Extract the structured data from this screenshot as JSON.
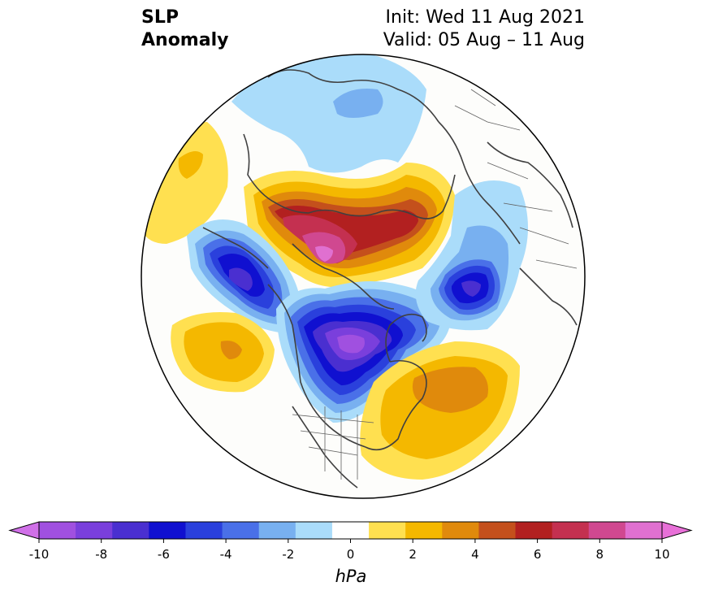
{
  "title": {
    "left_line1": "SLP",
    "left_line2": "Anomaly",
    "right_line1": "Init: Wed 11 Aug 2021",
    "right_line2": "Valid: 05 Aug – 11 Aug"
  },
  "colorbar": {
    "unit": "hPa",
    "min": -10,
    "max": 10,
    "ticks": [
      "-10",
      "-8",
      "-6",
      "-4",
      "-2",
      "0",
      "2",
      "4",
      "6",
      "8",
      "10"
    ],
    "colors": [
      "#a050e0",
      "#7a3fdc",
      "#4a2fd0",
      "#1010d0",
      "#2a40dc",
      "#4a70e8",
      "#78b0f0",
      "#aadcfa",
      "#ffffff",
      "#ffe050",
      "#f4b800",
      "#e08a0c",
      "#c4501c",
      "#b22020",
      "#c43050",
      "#d04890",
      "#e070d0"
    ],
    "extend_low_color": "#d070e8",
    "extend_high_color": "#e870d8"
  },
  "map": {
    "projection": "north-polar-stereographic",
    "background": "#fdfdfb"
  }
}
